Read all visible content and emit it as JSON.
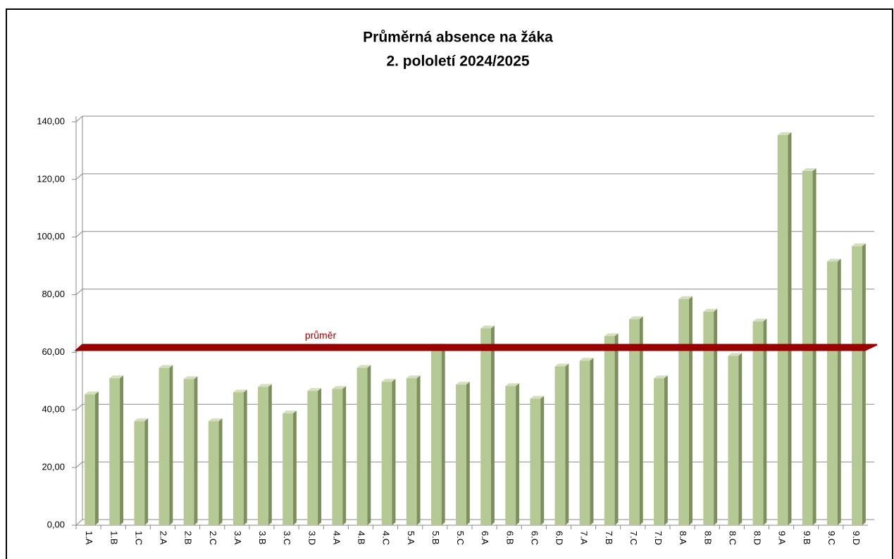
{
  "chart_data": {
    "type": "bar",
    "title": "Průměrná absence na žáka",
    "subtitle": "2. pololetí 2024/2025",
    "categories": [
      "1.A",
      "1.B",
      "1.C",
      "2.A",
      "2.B",
      "2.C",
      "3.A",
      "3.B",
      "3.C",
      "3.D",
      "4.A",
      "4.B",
      "4.C",
      "5.A",
      "5.B",
      "5.C",
      "6.A",
      "6.B",
      "6.C",
      "6.D",
      "7.A",
      "7.B",
      "7.C",
      "7.D",
      "8.A",
      "8.B",
      "8.C",
      "8.D",
      "9.A",
      "9.B",
      "9.C",
      "9.D"
    ],
    "values": [
      45.4,
      51.0,
      36.1,
      54.6,
      50.7,
      36.1,
      46.1,
      48.0,
      38.8,
      46.6,
      47.3,
      54.6,
      49.8,
      51.0,
      62.0,
      48.8,
      68.3,
      48.3,
      43.9,
      55.1,
      57.1,
      65.6,
      71.5,
      51.0,
      78.5,
      74.1,
      58.8,
      70.7,
      135.4,
      122.9,
      91.5,
      96.8
    ],
    "color": "#b5c994",
    "ylim": [
      0,
      140
    ],
    "yticks": [
      {
        "value": 0,
        "label": "0,00"
      },
      {
        "value": 20,
        "label": "20,00"
      },
      {
        "value": 40,
        "label": "40,00"
      },
      {
        "value": 60,
        "label": "60,00"
      },
      {
        "value": 80,
        "label": "80,00"
      },
      {
        "value": 100,
        "label": "100,00"
      },
      {
        "value": 120,
        "label": "120,00"
      },
      {
        "value": 140,
        "label": "140,00"
      }
    ],
    "grid": true,
    "average": {
      "label": "průměr",
      "value": 61.7,
      "color": "#990000"
    }
  }
}
